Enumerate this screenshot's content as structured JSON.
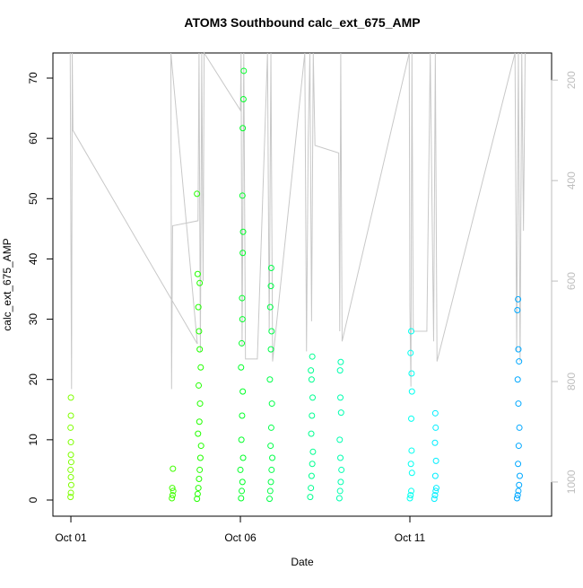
{
  "chart_data": {
    "type": "scatter",
    "title": "ATOM3 Southbound calc_ext_675_AMP",
    "x_label": "Date",
    "y_label": "calc_ext_675_AMP",
    "xlim": [
      0.47,
      15.18
    ],
    "xticks": [
      {
        "value": 1,
        "label": "Oct 01"
      },
      {
        "value": 6,
        "label": "Oct 06"
      },
      {
        "value": 11,
        "label": "Oct 11"
      }
    ],
    "ylim": [
      -2.68,
      74.17
    ],
    "yticks": [
      0,
      10,
      20,
      30,
      40,
      50,
      60,
      70
    ],
    "y2lim": [
      1068,
      146
    ],
    "y2ticks": [
      200,
      400,
      600,
      800,
      1000
    ],
    "y2_color": "#bebebe",
    "series": [
      {
        "marker": "open-circle",
        "x": [
          0.99,
          1.0,
          1.01,
          1.0,
          0.99,
          1.01,
          1.0,
          1.0,
          0.99,
          1.0,
          1.0,
          3.98,
          4.0,
          4.02,
          3.99,
          4.01,
          4.72,
          4.74,
          4.76,
          4.78,
          4.8,
          4.82,
          4.84,
          4.75,
          4.79,
          4.81,
          4.77,
          4.83,
          4.8,
          4.78,
          4.76,
          4.8,
          4.74,
          4.72,
          6.02,
          6.04,
          6.06,
          6.0,
          6.08,
          6.03,
          6.05,
          6.07,
          6.02,
          6.04,
          6.06,
          6.05,
          6.07,
          6.08,
          6.06,
          6.07,
          6.09,
          6.1,
          6.86,
          6.88,
          6.9,
          6.92,
          6.94,
          6.89,
          6.91,
          6.93,
          6.87,
          6.9,
          6.92,
          6.88,
          6.9,
          6.91,
          8.06,
          8.08,
          8.1,
          8.12,
          8.14,
          8.09,
          8.11,
          8.13,
          8.1,
          8.08,
          8.12,
          8.92,
          8.94,
          8.96,
          8.98,
          8.95,
          8.93,
          8.97,
          8.95,
          8.96,
          8.94,
          11.0,
          11.02,
          11.04,
          11.06,
          11.03,
          11.05,
          11.04,
          11.06,
          11.05,
          11.02,
          11.04,
          11.72,
          11.74,
          11.76,
          11.78,
          11.75,
          11.77,
          11.74,
          11.76,
          11.75,
          14.16,
          14.18,
          14.2,
          14.22,
          14.24,
          14.19,
          14.21,
          14.23,
          14.2,
          14.18,
          14.22,
          14.2,
          14.17,
          14.19
        ],
        "values": [
          0.5,
          1.2,
          2.5,
          3.8,
          5.0,
          6.3,
          7.5,
          9.6,
          12,
          14,
          17,
          0.3,
          0.8,
          1.5,
          2.0,
          5.2,
          0.2,
          1,
          2,
          3.5,
          5,
          7,
          9,
          11,
          13,
          16,
          19,
          22,
          25,
          28,
          32,
          36,
          37.5,
          50.8,
          0.3,
          1.5,
          3,
          5,
          7,
          10,
          14,
          18,
          22,
          26,
          30,
          33.5,
          41,
          44.5,
          50.5,
          61.7,
          66.5,
          71.2,
          0.2,
          1.5,
          3,
          5,
          7,
          9,
          12,
          16,
          20,
          25,
          28,
          32,
          35.5,
          38.5,
          0.5,
          2,
          4,
          6,
          8,
          11,
          14,
          17,
          20,
          21.5,
          23.8,
          0.3,
          1.5,
          3,
          5,
          7,
          10,
          14.5,
          17,
          22.9,
          21.5,
          0.3,
          0.8,
          1.5,
          4.5,
          6,
          8.2,
          13.5,
          18,
          21,
          24.4,
          28,
          0.2,
          0.8,
          1.5,
          2,
          4,
          6.5,
          9.5,
          12,
          14.4,
          0.3,
          0.8,
          1.5,
          2.5,
          4,
          6,
          9,
          12,
          16,
          20,
          23,
          25,
          31.5,
          33.3
        ],
        "colors": [
          "#7fff00",
          "#7fff00",
          "#7fff00",
          "#7fff00",
          "#7fff00",
          "#7fff00",
          "#7fff00",
          "#7fff00",
          "#7fff00",
          "#7fff00",
          "#7fff00",
          "#40ff00",
          "#40ff00",
          "#40ff00",
          "#40ff00",
          "#40ff00",
          "#22ff00",
          "#22ff00",
          "#22ff00",
          "#22ff00",
          "#22ff00",
          "#22ff00",
          "#22ff00",
          "#22ff00",
          "#22ff00",
          "#22ff00",
          "#22ff00",
          "#22ff00",
          "#22ff00",
          "#22ff00",
          "#22ff00",
          "#22ff00",
          "#22ff00",
          "#22ff00",
          "#00ff28",
          "#00ff28",
          "#00ff28",
          "#00ff28",
          "#00ff28",
          "#00ff28",
          "#00ff28",
          "#00ff28",
          "#00ff28",
          "#00ff28",
          "#00ff28",
          "#00ff28",
          "#00ff28",
          "#00ff28",
          "#00ff28",
          "#00ff28",
          "#00ff28",
          "#00ff28",
          "#00ff48",
          "#00ff48",
          "#00ff48",
          "#00ff48",
          "#00ff48",
          "#00ff48",
          "#00ff48",
          "#00ff48",
          "#00ff48",
          "#00ff48",
          "#00ff48",
          "#00ff48",
          "#00ff48",
          "#00ff48",
          "#00ff90",
          "#00ff90",
          "#00ff90",
          "#00ff90",
          "#00ff90",
          "#00ff90",
          "#00ff90",
          "#00ff90",
          "#00ff90",
          "#00ff90",
          "#00ff90",
          "#00ffb0",
          "#00ffb0",
          "#00ffb0",
          "#00ffb0",
          "#00ffb0",
          "#00ffb0",
          "#00ffb0",
          "#00ffb0",
          "#00ffb0",
          "#00ffb0",
          "#00fff0",
          "#00fff0",
          "#00fff0",
          "#00fff0",
          "#00fff0",
          "#00fff0",
          "#00fff0",
          "#00fff0",
          "#00fff0",
          "#00fff0",
          "#00fff0",
          "#00eeff",
          "#00eeff",
          "#00eeff",
          "#00eeff",
          "#00eeff",
          "#00eeff",
          "#00eeff",
          "#00eeff",
          "#00eeff",
          "#00a8ff",
          "#00a8ff",
          "#00a8ff",
          "#00a8ff",
          "#00a8ff",
          "#00a8ff",
          "#00a8ff",
          "#00a8ff",
          "#00a8ff",
          "#00a8ff",
          "#00a8ff",
          "#00a8ff",
          "#00a8ff",
          "#00a8ff"
        ]
      },
      {
        "type": "line",
        "axis": "y2",
        "color": "#c8c8c8",
        "x": [
          0.98,
          1.0,
          1.02,
          1.04,
          1.06,
          4.73,
          3.95,
          3.97,
          4.0,
          4.75,
          4.78,
          4.82,
          4.86,
          4.9,
          4.93,
          6.0,
          6.02,
          6.05,
          6.1,
          6.15,
          6.5,
          6.8,
          6.85,
          6.9,
          6.95,
          7.9,
          7.95,
          8.0,
          8.05,
          8.1,
          8.15,
          8.2,
          8.9,
          8.93,
          8.96,
          9.0,
          10.98,
          11.0,
          11.03,
          11.06,
          11.1,
          11.5,
          11.6,
          11.7,
          11.75,
          11.8,
          14.1,
          14.15,
          14.2,
          14.25,
          14.3,
          14.35,
          14.4
        ],
        "values": [
          146,
          500,
          815,
          146,
          300,
          725,
          146,
          815,
          490,
          480,
          146,
          740,
          146,
          600,
          146,
          260,
          146,
          730,
          146,
          755,
          755,
          146,
          700,
          146,
          760,
          146,
          740,
          320,
          146,
          680,
          146,
          330,
          345,
          700,
          146,
          720,
          146,
          650,
          810,
          146,
          700,
          700,
          146,
          720,
          146,
          760,
          146,
          740,
          146,
          760,
          146,
          500,
          146
        ]
      }
    ]
  }
}
